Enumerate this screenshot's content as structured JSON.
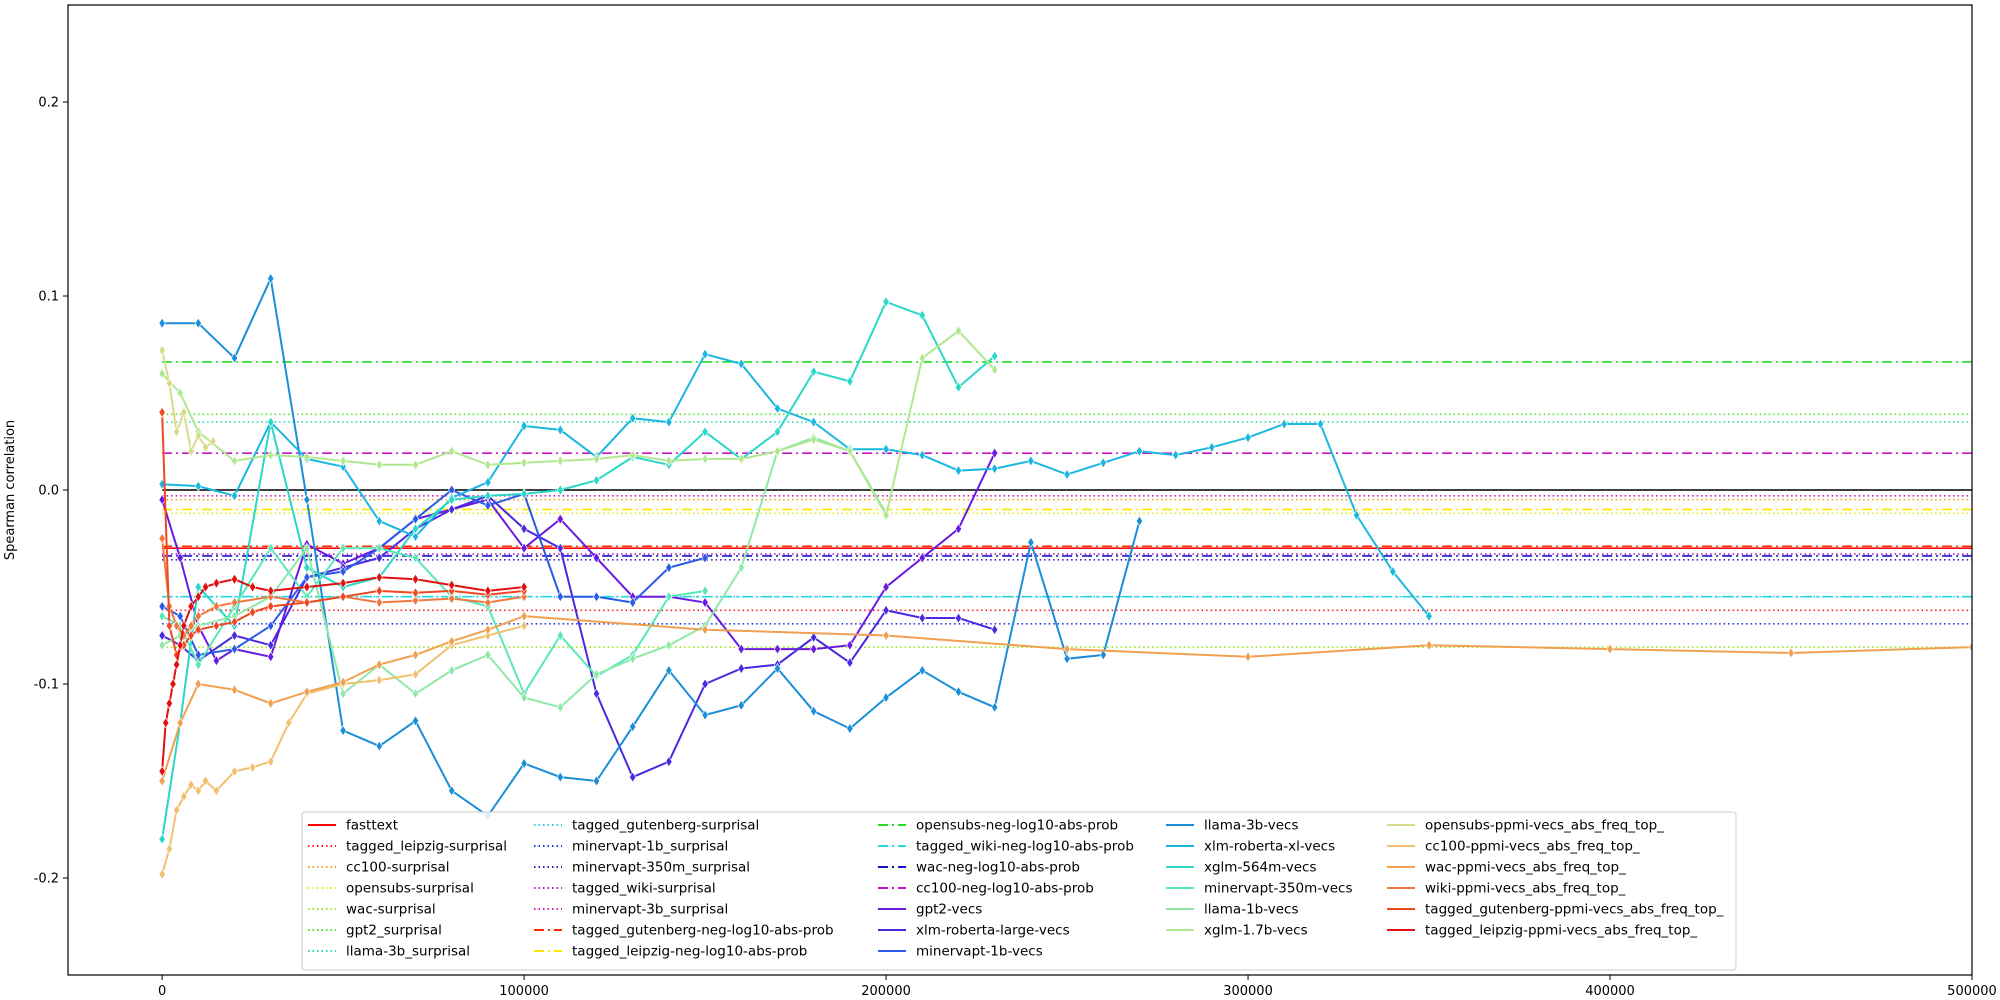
{
  "chart_data": {
    "type": "line",
    "title": "",
    "xlabel": "",
    "ylabel": "Spearman correlation",
    "xlim": [
      -26000,
      500000
    ],
    "ylim": [
      -0.25,
      0.25
    ],
    "xticks": [
      0,
      100000,
      200000,
      300000,
      400000,
      500000
    ],
    "yticks": [
      -0.2,
      -0.1,
      0.0,
      0.1,
      0.2
    ],
    "grid": false,
    "legend_position": "lower center",
    "reference_line": {
      "y": 0.0,
      "color": "#000000"
    },
    "legend_columns": [
      [
        "fasttext",
        "tagged_leipzig-surprisal",
        "cc100-surprisal",
        "opensubs-surprisal",
        "wac-surprisal",
        "gpt2_surprisal",
        "llama-3b_surprisal"
      ],
      [
        "tagged_gutenberg-surprisal",
        "minervapt-1b_surprisal",
        "minervapt-350m_surprisal",
        "tagged_wiki-surprisal",
        "minervapt-3b_surprisal",
        "tagged_gutenberg-neg-log10-abs-prob",
        "tagged_leipzig-neg-log10-abs-prob"
      ],
      [
        "opensubs-neg-log10-abs-prob",
        "tagged_wiki-neg-log10-abs-prob",
        "wac-neg-log10-abs-prob",
        "cc100-neg-log10-abs-prob",
        "gpt2-vecs",
        "xlm-roberta-large-vecs",
        "minervapt-1b-vecs"
      ],
      [
        "llama-3b-vecs",
        "xlm-roberta-xl-vecs",
        "xglm-564m-vecs",
        "minervapt-350m-vecs",
        "llama-1b-vecs",
        "xglm-1.7b-vecs"
      ],
      [
        "opensubs-ppmi-vecs_abs_freq_top_",
        "cc100-ppmi-vecs_abs_freq_top_",
        "wac-ppmi-vecs_abs_freq_top_",
        "wiki-ppmi-vecs_abs_freq_top_",
        "tagged_gutenberg-ppmi-vecs_abs_freq_top_",
        "tagged_leipzig-ppmi-vecs_abs_freq_top_"
      ]
    ],
    "series": [
      {
        "name": "fasttext",
        "kind": "hline",
        "y": -0.03,
        "color": "#ff0000",
        "dash": "solid"
      },
      {
        "name": "tagged_leipzig-surprisal",
        "kind": "hline",
        "y": -0.062,
        "color": "#ff1a1a",
        "dash": "dotted"
      },
      {
        "name": "cc100-surprisal",
        "kind": "hline",
        "y": -0.005,
        "color": "#f7a21b",
        "dash": "dotted"
      },
      {
        "name": "opensubs-surprisal",
        "kind": "hline",
        "y": -0.012,
        "color": "#e8e81a",
        "dash": "dotted"
      },
      {
        "name": "wac-surprisal",
        "kind": "hline",
        "y": -0.081,
        "color": "#9be81a",
        "dash": "dotted"
      },
      {
        "name": "gpt2_surprisal",
        "kind": "hline",
        "y": 0.039,
        "color": "#4ce02a",
        "dash": "dotted"
      },
      {
        "name": "llama-3b_surprisal",
        "kind": "hline",
        "y": 0.035,
        "color": "#2ad8b8",
        "dash": "dotted"
      },
      {
        "name": "tagged_gutenberg-surprisal",
        "kind": "hline",
        "y": -0.055,
        "color": "#28c8e8",
        "dash": "dotted"
      },
      {
        "name": "minervapt-1b_surprisal",
        "kind": "hline",
        "y": -0.069,
        "color": "#1e3ce0",
        "dash": "dotted"
      },
      {
        "name": "minervapt-350m_surprisal",
        "kind": "hline",
        "y": -0.036,
        "color": "#3a1ab8",
        "dash": "dotted"
      },
      {
        "name": "tagged_wiki-surprisal",
        "kind": "hline",
        "y": -0.033,
        "color": "#b81ad8",
        "dash": "dotted"
      },
      {
        "name": "minervapt-3b_surprisal",
        "kind": "hline",
        "y": -0.003,
        "color": "#d81ab0",
        "dash": "dotted"
      },
      {
        "name": "tagged_gutenberg-neg-log10-abs-prob",
        "kind": "hline",
        "y": -0.029,
        "color": "#ff2a00",
        "dash": "dashdot"
      },
      {
        "name": "tagged_leipzig-neg-log10-abs-prob",
        "kind": "hline",
        "y": -0.01,
        "color": "#ffe600",
        "dash": "dashdot"
      },
      {
        "name": "opensubs-neg-log10-abs-prob",
        "kind": "hline",
        "y": 0.066,
        "color": "#22dd22",
        "dash": "dashdot"
      },
      {
        "name": "tagged_wiki-neg-log10-abs-prob",
        "kind": "hline",
        "y": -0.055,
        "color": "#22d8d8",
        "dash": "dashdot"
      },
      {
        "name": "wac-neg-log10-abs-prob",
        "kind": "hline",
        "y": -0.034,
        "color": "#1414c8",
        "dash": "dashdot"
      },
      {
        "name": "cc100-neg-log10-abs-prob",
        "kind": "hline",
        "y": 0.019,
        "color": "#c814c8",
        "dash": "dashdot"
      },
      {
        "name": "gpt2-vecs",
        "kind": "line",
        "color": "#6a1ae0",
        "x": [
          0,
          5000,
          10000,
          15000,
          20000,
          30000,
          40000,
          50000,
          60000,
          70000,
          80000,
          90000,
          100000,
          110000,
          120000,
          130000,
          140000,
          150000,
          160000,
          170000,
          180000,
          190000,
          200000,
          210000,
          220000,
          230000
        ],
        "y": [
          -0.005,
          -0.035,
          -0.07,
          -0.088,
          -0.082,
          -0.086,
          -0.028,
          -0.038,
          -0.03,
          -0.015,
          -0.01,
          -0.005,
          -0.03,
          -0.015,
          -0.035,
          -0.055,
          -0.055,
          -0.058,
          -0.082,
          -0.082,
          -0.082,
          -0.08,
          -0.05,
          -0.035,
          -0.02,
          0.019
        ]
      },
      {
        "name": "xlm-roberta-large-vecs",
        "kind": "line",
        "color": "#4a2ae0",
        "x": [
          0,
          5000,
          10000,
          20000,
          30000,
          40000,
          50000,
          60000,
          70000,
          80000,
          90000,
          100000,
          110000,
          120000,
          130000,
          140000,
          150000,
          160000,
          170000,
          180000,
          190000,
          200000,
          210000,
          220000,
          230000
        ],
        "y": [
          -0.075,
          -0.08,
          -0.088,
          -0.075,
          -0.08,
          -0.045,
          -0.04,
          -0.035,
          -0.02,
          -0.01,
          -0.003,
          -0.02,
          -0.03,
          -0.105,
          -0.148,
          -0.14,
          -0.1,
          -0.092,
          -0.09,
          -0.076,
          -0.089,
          -0.062,
          -0.066,
          -0.066,
          -0.072
        ]
      },
      {
        "name": "minervapt-1b-vecs",
        "kind": "line",
        "color": "#2a5ae8",
        "x": [
          0,
          5000,
          10000,
          20000,
          30000,
          40000,
          50000,
          60000,
          70000,
          80000,
          90000,
          100000,
          110000,
          120000,
          130000,
          140000,
          150000
        ],
        "y": [
          -0.06,
          -0.065,
          -0.085,
          -0.082,
          -0.07,
          -0.045,
          -0.042,
          -0.03,
          -0.015,
          0.0,
          -0.008,
          -0.002,
          -0.055,
          -0.055,
          -0.058,
          -0.04,
          -0.035
        ]
      },
      {
        "name": "llama-3b-vecs",
        "kind": "line",
        "color": "#1a8ed8",
        "x": [
          0,
          10000,
          20000,
          30000,
          40000,
          50000,
          60000,
          70000,
          80000,
          90000,
          100000,
          110000,
          120000,
          130000,
          140000,
          150000,
          160000,
          170000,
          180000,
          190000,
          200000,
          210000,
          220000,
          230000,
          240000,
          250000,
          260000,
          270000
        ],
        "y": [
          0.086,
          0.086,
          0.068,
          0.109,
          -0.005,
          -0.124,
          -0.132,
          -0.119,
          -0.155,
          -0.168,
          -0.141,
          -0.148,
          -0.15,
          -0.122,
          -0.093,
          -0.116,
          -0.111,
          -0.092,
          -0.114,
          -0.123,
          -0.107,
          -0.093,
          -0.104,
          -0.112,
          -0.027,
          -0.087,
          -0.085,
          -0.016
        ]
      },
      {
        "name": "xlm-roberta-xl-vecs",
        "kind": "line",
        "color": "#1ab8e0",
        "x": [
          0,
          10000,
          20000,
          30000,
          40000,
          50000,
          60000,
          70000,
          80000,
          90000,
          100000,
          110000,
          120000,
          130000,
          140000,
          150000,
          160000,
          170000,
          180000,
          190000,
          200000,
          210000,
          220000,
          230000,
          240000,
          250000,
          260000,
          270000,
          280000,
          290000,
          300000,
          310000,
          320000,
          330000,
          340000,
          350000
        ],
        "y": [
          0.003,
          0.002,
          -0.003,
          0.035,
          0.016,
          0.012,
          -0.016,
          -0.024,
          -0.004,
          0.004,
          0.033,
          0.031,
          0.017,
          0.037,
          0.035,
          0.07,
          0.065,
          0.042,
          0.035,
          0.021,
          0.021,
          0.018,
          0.01,
          0.011,
          0.015,
          0.008,
          0.014,
          0.02,
          0.018,
          0.022,
          0.027,
          0.034,
          0.034,
          -0.013,
          -0.042,
          -0.065
        ]
      },
      {
        "name": "xglm-564m-vecs",
        "kind": "line",
        "color": "#2ad8c8",
        "x": [
          0,
          5000,
          10000,
          20000,
          30000,
          40000,
          50000,
          60000,
          70000,
          80000,
          90000,
          100000,
          110000,
          120000,
          130000,
          140000,
          150000,
          160000,
          170000,
          180000,
          190000,
          200000,
          210000,
          220000,
          230000
        ],
        "y": [
          -0.18,
          -0.12,
          -0.05,
          -0.07,
          0.035,
          -0.04,
          -0.05,
          -0.045,
          -0.02,
          -0.005,
          -0.003,
          -0.002,
          0.0,
          0.005,
          0.017,
          0.013,
          0.03,
          0.016,
          0.03,
          0.061,
          0.056,
          0.097,
          0.09,
          0.053,
          0.069
        ]
      },
      {
        "name": "minervapt-350m-vecs",
        "kind": "line",
        "color": "#5ae8b8",
        "x": [
          0,
          5000,
          10000,
          20000,
          30000,
          40000,
          50000,
          60000,
          70000,
          80000,
          90000,
          100000,
          110000,
          120000,
          130000,
          140000,
          150000
        ],
        "y": [
          -0.065,
          -0.07,
          -0.09,
          -0.06,
          -0.03,
          -0.055,
          -0.03,
          -0.03,
          -0.035,
          -0.055,
          -0.06,
          -0.105,
          -0.075,
          -0.096,
          -0.085,
          -0.055,
          -0.052
        ]
      },
      {
        "name": "llama-1b-vecs",
        "kind": "line",
        "color": "#8ee8a8",
        "x": [
          0,
          5000,
          10000,
          20000,
          30000,
          40000,
          50000,
          60000,
          70000,
          80000,
          90000,
          100000,
          110000,
          120000,
          130000,
          140000,
          150000,
          160000,
          170000,
          180000,
          190000,
          200000
        ],
        "y": [
          -0.08,
          -0.075,
          -0.07,
          -0.065,
          -0.055,
          -0.03,
          -0.105,
          -0.09,
          -0.105,
          -0.093,
          -0.085,
          -0.107,
          -0.112,
          -0.095,
          -0.087,
          -0.08,
          -0.07,
          -0.04,
          0.02,
          0.027,
          0.02,
          -0.012
        ]
      },
      {
        "name": "xglm-1.7b-vecs",
        "kind": "line",
        "color": "#b0e890",
        "x": [
          0,
          5000,
          10000,
          20000,
          30000,
          40000,
          50000,
          60000,
          70000,
          80000,
          90000,
          100000,
          110000,
          120000,
          130000,
          140000,
          150000,
          160000,
          170000,
          180000,
          190000,
          200000,
          210000,
          220000,
          230000
        ],
        "y": [
          0.06,
          0.05,
          0.03,
          0.015,
          0.018,
          0.017,
          0.015,
          0.013,
          0.013,
          0.02,
          0.013,
          0.014,
          0.015,
          0.016,
          0.018,
          0.015,
          0.016,
          0.016,
          0.02,
          0.026,
          0.02,
          -0.013,
          0.068,
          0.082,
          0.062
        ]
      },
      {
        "name": "opensubs-ppmi-vecs_abs_freq_top_",
        "kind": "line",
        "color": "#d8dc8a",
        "x": [
          0,
          2000,
          4000,
          6000,
          8000,
          10000,
          12000,
          14000
        ],
        "y": [
          0.072,
          0.055,
          0.03,
          0.04,
          0.02,
          0.028,
          0.022,
          0.025
        ]
      },
      {
        "name": "cc100-ppmi-vecs_abs_freq_top_",
        "kind": "line",
        "color": "#f0c070",
        "x": [
          0,
          2000,
          4000,
          6000,
          8000,
          10000,
          12000,
          15000,
          20000,
          25000,
          30000,
          35000,
          40000,
          50000,
          60000,
          70000,
          80000,
          90000,
          100000
        ],
        "y": [
          -0.198,
          -0.185,
          -0.165,
          -0.158,
          -0.152,
          -0.155,
          -0.15,
          -0.155,
          -0.145,
          -0.143,
          -0.14,
          -0.12,
          -0.105,
          -0.1,
          -0.098,
          -0.095,
          -0.08,
          -0.075,
          -0.07
        ]
      },
      {
        "name": "wac-ppmi-vecs_abs_freq_top_",
        "kind": "line",
        "color": "#f0a050",
        "x": [
          0,
          5000,
          10000,
          20000,
          30000,
          40000,
          50000,
          60000,
          70000,
          80000,
          90000,
          100000,
          150000,
          200000,
          250000,
          300000,
          350000,
          400000,
          450000,
          500000
        ],
        "y": [
          -0.15,
          -0.12,
          -0.1,
          -0.103,
          -0.11,
          -0.104,
          -0.099,
          -0.09,
          -0.085,
          -0.078,
          -0.072,
          -0.065,
          -0.072,
          -0.075,
          -0.082,
          -0.086,
          -0.08,
          -0.082,
          -0.084,
          -0.081
        ]
      },
      {
        "name": "wiki-ppmi-vecs_abs_freq_top_",
        "kind": "line",
        "color": "#f07840",
        "x": [
          0,
          2000,
          4000,
          6000,
          8000,
          10000,
          15000,
          20000,
          30000,
          40000,
          50000,
          60000,
          70000,
          80000,
          90000,
          100000
        ],
        "y": [
          -0.025,
          -0.06,
          -0.07,
          -0.075,
          -0.07,
          -0.065,
          -0.06,
          -0.058,
          -0.055,
          -0.058,
          -0.055,
          -0.058,
          -0.057,
          -0.056,
          -0.058,
          -0.055
        ]
      },
      {
        "name": "tagged_gutenberg-ppmi-vecs_abs_freq_top_",
        "kind": "line",
        "color": "#f04820",
        "x": [
          0,
          2000,
          4000,
          6000,
          8000,
          10000,
          15000,
          20000,
          25000,
          30000,
          40000,
          50000,
          60000,
          70000,
          80000,
          90000,
          100000
        ],
        "y": [
          0.04,
          -0.07,
          -0.085,
          -0.08,
          -0.075,
          -0.072,
          -0.07,
          -0.068,
          -0.063,
          -0.06,
          -0.058,
          -0.055,
          -0.052,
          -0.053,
          -0.052,
          -0.054,
          -0.052
        ]
      },
      {
        "name": "tagged_leipzig-ppmi-vecs_abs_freq_top_",
        "kind": "line",
        "color": "#e01010",
        "x": [
          0,
          1000,
          2000,
          3000,
          4000,
          5000,
          6000,
          8000,
          10000,
          12000,
          15000,
          20000,
          25000,
          30000,
          40000,
          50000,
          60000,
          70000,
          80000,
          90000,
          100000
        ],
        "y": [
          -0.145,
          -0.12,
          -0.11,
          -0.1,
          -0.09,
          -0.08,
          -0.07,
          -0.06,
          -0.055,
          -0.05,
          -0.048,
          -0.046,
          -0.05,
          -0.052,
          -0.05,
          -0.048,
          -0.045,
          -0.046,
          -0.049,
          -0.052,
          -0.05
        ]
      }
    ]
  }
}
